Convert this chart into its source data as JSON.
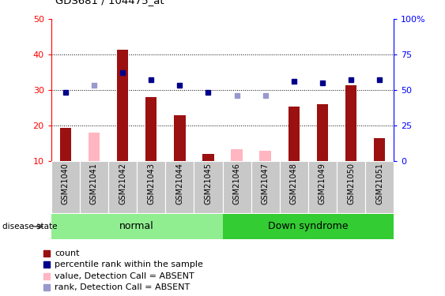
{
  "title": "GDS681 / 104475_at",
  "samples": [
    "GSM21040",
    "GSM21041",
    "GSM21042",
    "GSM21043",
    "GSM21044",
    "GSM21045",
    "GSM21046",
    "GSM21047",
    "GSM21048",
    "GSM21049",
    "GSM21050",
    "GSM21051"
  ],
  "bar_values": [
    19.5,
    null,
    41.5,
    28.0,
    23.0,
    12.0,
    null,
    null,
    25.5,
    26.0,
    31.5,
    16.5
  ],
  "bar_absent_values": [
    null,
    18.0,
    null,
    null,
    null,
    null,
    13.5,
    13.0,
    null,
    null,
    null,
    null
  ],
  "rank_present": [
    29.5,
    null,
    35.0,
    33.0,
    31.5,
    29.5,
    null,
    null,
    32.5,
    32.0,
    33.0,
    33.0
  ],
  "rank_absent": [
    null,
    31.5,
    null,
    null,
    null,
    null,
    28.5,
    28.5,
    null,
    null,
    null,
    null
  ],
  "bar_color_present": "#9B1010",
  "bar_color_absent": "#FFB6C1",
  "rank_color_present": "#00008B",
  "rank_color_absent": "#9999CC",
  "ylim_left": [
    10,
    50
  ],
  "ylim_right": [
    0,
    100
  ],
  "yticks_left": [
    10,
    20,
    30,
    40,
    50
  ],
  "yticks_right": [
    0,
    25,
    50,
    75,
    100
  ],
  "grid_lines": [
    20,
    30,
    40
  ],
  "normal_indices": [
    0,
    1,
    2,
    3,
    4,
    5
  ],
  "down_indices": [
    6,
    7,
    8,
    9,
    10,
    11
  ],
  "normal_color": "#90EE90",
  "down_color": "#33CC33",
  "group_label_normal": "normal",
  "group_label_down": "Down syndrome",
  "disease_state_label": "disease state",
  "xtick_bg_color": "#C8C8C8",
  "legend_items": [
    {
      "label": "count",
      "color": "#9B1010",
      "lw": 0
    },
    {
      "label": "percentile rank within the sample",
      "color": "#00008B",
      "lw": 0
    },
    {
      "label": "value, Detection Call = ABSENT",
      "color": "#FFB6C1",
      "lw": 0
    },
    {
      "label": "rank, Detection Call = ABSENT",
      "color": "#9999CC",
      "lw": 0
    }
  ],
  "bar_width": 0.4,
  "marker_size": 5
}
